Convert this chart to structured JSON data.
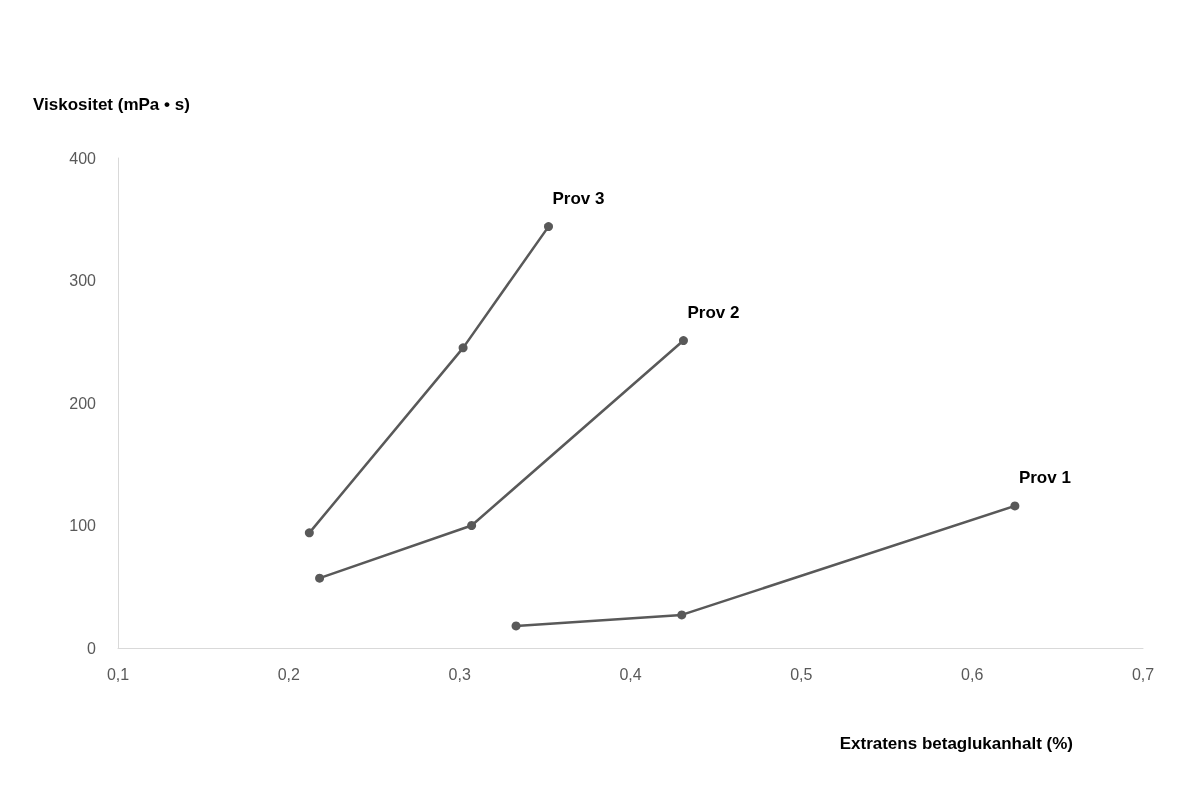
{
  "chart_data": {
    "type": "line",
    "xlabel": "Extratens betaglukanhalt (%)",
    "ylabel": "Viskositet (mPa • s)",
    "xlim": [
      0.1,
      0.7
    ],
    "xticks": [
      {
        "value": 0.1,
        "label": "0,1"
      },
      {
        "value": 0.2,
        "label": "0,2"
      },
      {
        "value": 0.3,
        "label": "0,3"
      },
      {
        "value": 0.4,
        "label": "0,4"
      },
      {
        "value": 0.5,
        "label": "0,5"
      },
      {
        "value": 0.6,
        "label": "0,6"
      },
      {
        "value": 0.7,
        "label": "0,7"
      }
    ],
    "ylim": [
      0,
      400
    ],
    "yticks": [
      0,
      100,
      200,
      300,
      400
    ],
    "grid": false,
    "legend": false,
    "marker": "circle",
    "line_style": "solid",
    "series": [
      {
        "name": "Prov 1",
        "color": "#595959",
        "x": [
          0.333,
          0.43,
          0.625
        ],
        "values": [
          18,
          27,
          116
        ]
      },
      {
        "name": "Prov 2",
        "color": "#595959",
        "x": [
          0.218,
          0.307,
          0.431
        ],
        "values": [
          57,
          100,
          251
        ]
      },
      {
        "name": "Prov 3",
        "color": "#595959",
        "x": [
          0.212,
          0.302,
          0.352
        ],
        "values": [
          94,
          245,
          344
        ]
      }
    ]
  }
}
